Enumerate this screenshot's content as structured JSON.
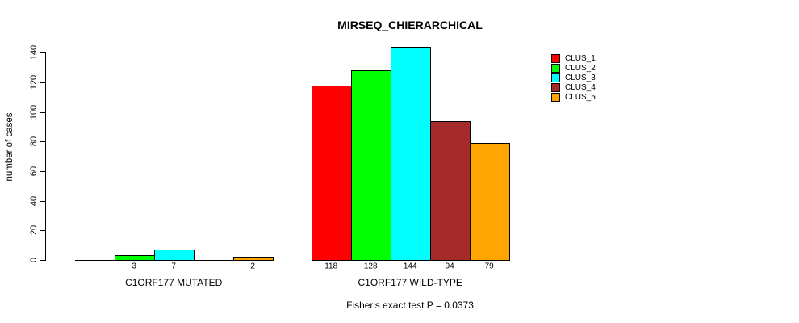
{
  "title": "MIRSEQ_CHIERARCHICAL",
  "ylabel": "number of cases",
  "footer": "Fisher's exact test P = 0.0373",
  "chart_data": {
    "type": "bar",
    "title": "MIRSEQ_CHIERARCHICAL",
    "xlabel": "",
    "ylabel": "number of cases",
    "categories": [
      "C1ORF177 MUTATED",
      "C1ORF177 WILD-TYPE"
    ],
    "series": [
      {
        "name": "CLUS_1",
        "color": "#FF0000",
        "values": [
          0,
          118
        ]
      },
      {
        "name": "CLUS_2",
        "color": "#00FF00",
        "values": [
          3,
          128
        ]
      },
      {
        "name": "CLUS_3",
        "color": "#00FFFF",
        "values": [
          7,
          144
        ]
      },
      {
        "name": "CLUS_4",
        "color": "#A52A2A",
        "values": [
          0,
          94
        ]
      },
      {
        "name": "CLUS_5",
        "color": "#FFA500",
        "values": [
          2,
          79
        ]
      }
    ],
    "bar_value_labels": [
      "3",
      "7",
      "2",
      "118",
      "128",
      "144",
      "94",
      "79"
    ],
    "value_labels_hide_zero": true,
    "yticks": [
      0,
      20,
      40,
      60,
      80,
      100,
      120,
      140
    ],
    "ylim": [
      0,
      144
    ],
    "grid": false,
    "legend_position": "top-right",
    "legend_entries": [
      "CLUS_1",
      "CLUS_2",
      "CLUS_3",
      "CLUS_4",
      "CLUS_5"
    ],
    "annotation": "Fisher's exact test P = 0.0373"
  }
}
